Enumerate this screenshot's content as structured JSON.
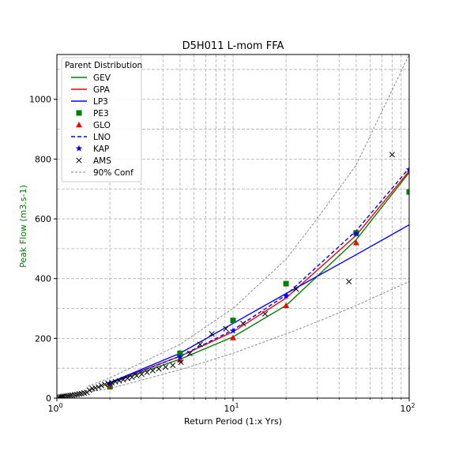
{
  "chart_data": {
    "type": "line",
    "title": "D5H011 L-mom FFA",
    "xlabel": "Return Period (1:x Yrs)",
    "ylabel": "Peak Flow (m3.s-1)",
    "ylabel_color": "#008000",
    "xscale": "log",
    "xlim": [
      1,
      100
    ],
    "ylim": [
      0,
      1150
    ],
    "x_ticks": [
      {
        "value": 1,
        "base": "10",
        "exp": "0"
      },
      {
        "value": 10,
        "base": "10",
        "exp": "1"
      },
      {
        "value": 100,
        "base": "10",
        "exp": "2"
      }
    ],
    "y_ticks": [
      {
        "value": 0,
        "label": "0"
      },
      {
        "value": 200,
        "label": "200"
      },
      {
        "value": 400,
        "label": "400"
      },
      {
        "value": 600,
        "label": "600"
      },
      {
        "value": 800,
        "label": "800"
      },
      {
        "value": 1000,
        "label": "1000"
      }
    ],
    "grid": true,
    "legend": {
      "title": "Parent Distribution",
      "placement": "upper-left"
    },
    "series": [
      {
        "name": "GEV",
        "kind": "line",
        "color": "#008000",
        "dash": "solid",
        "x": [
          2,
          5,
          10,
          20,
          50,
          100
        ],
        "y": [
          50,
          130,
          205,
          310,
          530,
          755
        ]
      },
      {
        "name": "GPA",
        "kind": "line",
        "color": "#ff0000",
        "dash": "solid",
        "x": [
          2,
          5,
          10,
          20,
          50,
          100
        ],
        "y": [
          52,
          140,
          222,
          335,
          545,
          760
        ]
      },
      {
        "name": "LP3",
        "kind": "line",
        "color": "#0000ff",
        "dash": "solid",
        "x": [
          2,
          5,
          10,
          20,
          50,
          100
        ],
        "y": [
          52,
          150,
          250,
          350,
          480,
          580
        ]
      },
      {
        "name": "PE3",
        "kind": "marker",
        "marker": "square",
        "color": "#008000",
        "x": [
          2,
          5,
          10,
          20,
          50,
          100
        ],
        "y": [
          38,
          150,
          260,
          383,
          553,
          690
        ]
      },
      {
        "name": "GLO",
        "kind": "marker",
        "marker": "triangle",
        "color": "#ff0000",
        "x": [
          2,
          5,
          10,
          20,
          50
        ],
        "y": [
          45,
          128,
          202,
          310,
          520
        ]
      },
      {
        "name": "LNO",
        "kind": "line",
        "color": "#0000ff",
        "dash": "dashed",
        "x": [
          2,
          5,
          10,
          20,
          50,
          100
        ],
        "y": [
          50,
          140,
          228,
          345,
          560,
          770
        ]
      },
      {
        "name": "KAP",
        "kind": "marker",
        "marker": "star",
        "color": "#0000ff",
        "x": [
          2,
          5,
          10,
          20,
          50,
          100
        ],
        "y": [
          48,
          138,
          225,
          342,
          550,
          765
        ]
      },
      {
        "name": "AMS",
        "kind": "marker",
        "marker": "x",
        "color": "#000000",
        "x": [
          1.02,
          1.04,
          1.06,
          1.08,
          1.1,
          1.13,
          1.16,
          1.19,
          1.22,
          1.26,
          1.3,
          1.34,
          1.38,
          1.43,
          1.48,
          1.53,
          1.59,
          1.65,
          1.72,
          1.79,
          1.87,
          1.95,
          2.05,
          2.15,
          2.26,
          2.38,
          2.52,
          2.67,
          2.84,
          3.03,
          3.25,
          3.5,
          3.79,
          4.14,
          4.55,
          5.06,
          5.69,
          6.5,
          7.58,
          9.1,
          11.4,
          15.2,
          22.8,
          45.5,
          80
        ],
        "y": [
          2,
          3,
          4,
          5,
          6,
          7,
          8,
          9,
          10,
          11,
          12,
          14,
          15,
          17,
          19,
          27,
          32,
          34,
          37,
          42,
          46,
          50,
          52,
          55,
          58,
          62,
          66,
          70,
          75,
          80,
          86,
          92,
          98,
          104,
          110,
          120,
          150,
          180,
          215,
          232,
          250,
          282,
          365,
          390,
          815
        ]
      },
      {
        "name": "90% Conf",
        "kind": "line",
        "color": "#808080",
        "dash": "dashed",
        "thin": true,
        "x": [
          1.5,
          2,
          5,
          10,
          20,
          30,
          50,
          100
        ],
        "y": [
          40,
          68,
          180,
          300,
          465,
          600,
          780,
          1150
        ]
      },
      {
        "name": "",
        "kind": "line",
        "color": "#808080",
        "dash": "dashed",
        "thin": true,
        "legend": false,
        "x": [
          1.5,
          2,
          5,
          10,
          20,
          30,
          50,
          100
        ],
        "y": [
          20,
          32,
          95,
          150,
          215,
          255,
          310,
          390
        ]
      }
    ]
  }
}
